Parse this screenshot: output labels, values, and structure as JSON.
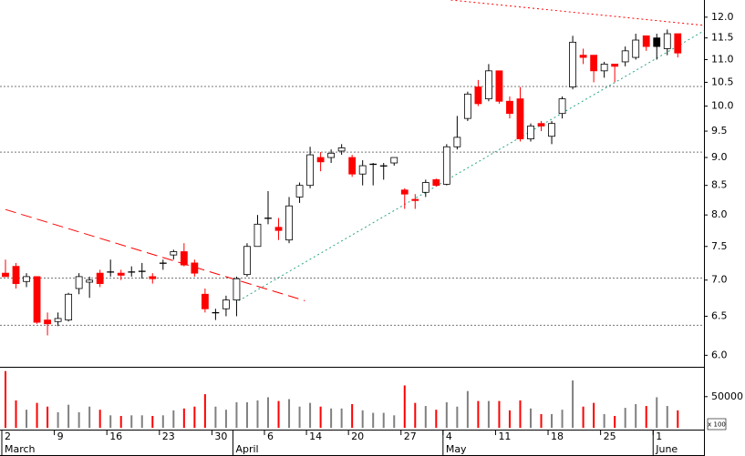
{
  "chart_data": [
    {
      "type": "candlestick",
      "log_scale": true,
      "categories": [
        "2",
        null,
        null,
        null,
        null,
        "9",
        null,
        null,
        null,
        null,
        "16",
        null,
        null,
        null,
        null,
        "23",
        null,
        null,
        null,
        null,
        "30",
        null,
        null,
        null,
        null,
        "6",
        null,
        null,
        null,
        "14",
        null,
        null,
        null,
        "20",
        null,
        null,
        null,
        null,
        "27",
        null,
        null,
        null,
        "4",
        null,
        null,
        null,
        null,
        "11",
        null,
        null,
        null,
        null,
        "18",
        null,
        null,
        null,
        null,
        "25",
        null,
        null,
        null,
        null,
        "1",
        null,
        null
      ],
      "months": [
        "March",
        null,
        null,
        null,
        null,
        null,
        null,
        null,
        null,
        null,
        null,
        null,
        null,
        null,
        null,
        null,
        null,
        null,
        null,
        null,
        null,
        null,
        "April",
        null,
        null,
        null,
        null,
        null,
        null,
        null,
        null,
        null,
        null,
        null,
        null,
        null,
        null,
        null,
        null,
        null,
        null,
        null,
        "May",
        null,
        null,
        null,
        null,
        null,
        null,
        null,
        null,
        null,
        null,
        null,
        null,
        null,
        null,
        null,
        null,
        null,
        null,
        null,
        "June",
        null,
        null
      ],
      "open": [
        7.1,
        7.2,
        6.98,
        7.05,
        6.45,
        6.43,
        6.45,
        6.88,
        6.97,
        7.1,
        7.12,
        7.1,
        7.12,
        7.13,
        7.05,
        7.25,
        7.37,
        7.42,
        7.25,
        6.8,
        6.55,
        6.6,
        6.72,
        7.08,
        7.5,
        7.95,
        7.8,
        7.6,
        8.3,
        8.5,
        9.0,
        9.0,
        9.12,
        9.0,
        8.7,
        8.88,
        8.85,
        8.9,
        8.42,
        8.26,
        8.38,
        8.6,
        8.52,
        9.2,
        9.75,
        10.4,
        10.15,
        10.75,
        10.1,
        10.15,
        9.35,
        9.65,
        9.4,
        9.85,
        10.4,
        11.1,
        11.1,
        10.75,
        10.9,
        10.95,
        11.05,
        11.55,
        11.5,
        11.25,
        11.6
      ],
      "high": [
        7.3,
        7.25,
        7.1,
        7.05,
        6.55,
        6.55,
        6.82,
        7.1,
        7.05,
        7.15,
        7.3,
        7.15,
        7.2,
        7.25,
        7.1,
        7.3,
        7.45,
        7.55,
        7.3,
        6.88,
        6.6,
        6.78,
        7.05,
        7.55,
        8.0,
        8.4,
        7.95,
        8.3,
        8.55,
        9.2,
        9.1,
        9.15,
        9.25,
        9.05,
        8.95,
        8.9,
        8.9,
        9.0,
        8.45,
        8.35,
        8.6,
        8.62,
        9.25,
        9.8,
        10.3,
        10.55,
        10.9,
        10.75,
        10.2,
        10.4,
        9.65,
        9.7,
        9.7,
        10.2,
        11.55,
        11.25,
        11.1,
        10.95,
        10.9,
        11.3,
        11.6,
        11.55,
        11.6,
        11.7,
        11.6
      ],
      "low": [
        7.05,
        6.88,
        6.9,
        6.4,
        6.25,
        6.37,
        6.43,
        6.8,
        6.75,
        6.9,
        7.05,
        7.0,
        7.05,
        7.02,
        6.95,
        7.15,
        7.3,
        7.2,
        7.05,
        6.55,
        6.45,
        6.5,
        6.5,
        7.05,
        7.5,
        7.85,
        7.6,
        7.55,
        8.2,
        8.45,
        8.75,
        8.9,
        9.05,
        8.65,
        8.5,
        8.5,
        8.6,
        8.85,
        8.1,
        8.1,
        8.3,
        8.48,
        8.5,
        9.15,
        9.7,
        10.0,
        10.1,
        10.05,
        9.75,
        9.3,
        9.3,
        9.5,
        9.25,
        9.75,
        10.35,
        10.9,
        10.5,
        10.6,
        10.5,
        10.85,
        11.0,
        11.2,
        11.0,
        11.1,
        11.05
      ],
      "close": [
        7.05,
        6.95,
        7.05,
        6.42,
        6.4,
        6.47,
        6.8,
        7.05,
        7.0,
        6.95,
        7.12,
        7.07,
        7.12,
        7.13,
        7.02,
        7.25,
        7.42,
        7.22,
        7.1,
        6.6,
        6.55,
        6.72,
        7.02,
        7.5,
        7.85,
        7.95,
        7.75,
        8.15,
        8.5,
        9.05,
        8.92,
        9.08,
        9.18,
        8.7,
        8.85,
        8.88,
        8.85,
        9.0,
        8.35,
        8.24,
        8.55,
        8.5,
        9.2,
        9.38,
        10.25,
        10.05,
        10.75,
        10.1,
        9.85,
        9.35,
        9.6,
        9.6,
        9.65,
        10.15,
        11.4,
        11.05,
        10.75,
        10.9,
        10.85,
        11.2,
        11.45,
        11.3,
        11.3,
        11.6,
        11.15
      ],
      "colors": [
        "#ff0000",
        "#ff0000",
        "#ffffff",
        "#ff0000",
        "#ff0000",
        "#ffffff",
        "#ffffff",
        "#ffffff",
        "#ffffff",
        "#ff0000",
        "#000000",
        "#ff0000",
        "#000000",
        "#000000",
        "#ff0000",
        "#000000",
        "#ffffff",
        "#ff0000",
        "#ff0000",
        "#ff0000",
        "#000000",
        "#ffffff",
        "#ffffff",
        "#ffffff",
        "#ffffff",
        "#000000",
        "#ff0000",
        "#ffffff",
        "#ffffff",
        "#ffffff",
        "#ff0000",
        "#ffffff",
        "#ffffff",
        "#ff0000",
        "#ffffff",
        "#000000",
        "#000000",
        "#ffffff",
        "#ff0000",
        "#ff0000",
        "#ffffff",
        "#ff0000",
        "#ffffff",
        "#ffffff",
        "#ffffff",
        "#ff0000",
        "#ffffff",
        "#ff0000",
        "#ff0000",
        "#ff0000",
        "#ffffff",
        "#ff0000",
        "#ffffff",
        "#ffffff",
        "#ffffff",
        "#ff0000",
        "#ff0000",
        "#ffffff",
        "#ff0000",
        "#ffffff",
        "#ffffff",
        "#ff0000",
        "#000000",
        "#ffffff",
        "#ff0000"
      ],
      "ylim": [
        5.86,
        12.43
      ],
      "yticks": [
        {
          "value": 6,
          "label": "6.0"
        },
        {
          "value": 6.5,
          "label": "6.5"
        },
        {
          "value": 7,
          "label": "7.0"
        },
        {
          "value": 7.5,
          "label": "7.5"
        },
        {
          "value": 8,
          "label": "8.0"
        },
        {
          "value": 8.5,
          "label": "8.5"
        },
        {
          "value": 9,
          "label": "9.0"
        },
        {
          "value": 9.5,
          "label": "9.5"
        },
        {
          "value": 10,
          "label": "10.0"
        },
        {
          "value": 10.5,
          "label": "10.5"
        },
        {
          "value": 11,
          "label": "11.0"
        },
        {
          "value": 11.5,
          "label": "11.5"
        },
        {
          "value": 12,
          "label": "12.0"
        }
      ],
      "hlines": [
        10.41,
        9.1,
        7.03,
        6.38
      ],
      "trendlines": [
        {
          "color": "#ff0000",
          "dash": "12 6",
          "x": [
            0,
            28.5
          ],
          "y": [
            8.09,
            6.71
          ]
        },
        {
          "color": "#2aa58a",
          "dash": "2 3",
          "x": [
            22.2,
            66.5
          ],
          "y": [
            6.71,
            11.67
          ]
        },
        {
          "color": "#ff0000",
          "dash": "2 3",
          "x": [
            42.4,
            66.5
          ],
          "y": [
            12.43,
            11.8
          ]
        }
      ]
    },
    {
      "type": "volume",
      "values": [
        91000,
        44000,
        29000,
        40000,
        34000,
        25000,
        37000,
        25000,
        34000,
        29000,
        20000,
        19000,
        20000,
        20000,
        19000,
        20000,
        28000,
        31000,
        34000,
        54000,
        34000,
        29000,
        41000,
        41000,
        44000,
        49000,
        43000,
        46000,
        34000,
        40000,
        34000,
        31000,
        31000,
        38000,
        28000,
        24000,
        24000,
        20000,
        68000,
        40000,
        35000,
        29000,
        41000,
        34000,
        59000,
        43000,
        43000,
        43000,
        28000,
        44000,
        31000,
        22000,
        22000,
        29000,
        76000,
        34000,
        40000,
        22000,
        19000,
        32000,
        38000,
        35000,
        49000,
        35000,
        28000
      ],
      "down_color": "#ff0000",
      "up_color": "#808080",
      "ylim": [
        0,
        95000
      ],
      "yticks": [
        50000
      ],
      "unit_label": "x 100"
    }
  ]
}
